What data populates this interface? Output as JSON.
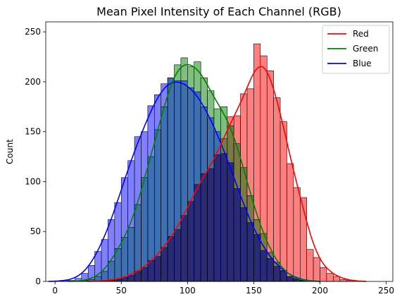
{
  "chart_data": {
    "type": "histogram",
    "title": "Mean Pixel Intensity of Each Channel (RGB)",
    "xlabel": "",
    "ylabel": "Count",
    "xlim": [
      -7,
      255
    ],
    "ylim": [
      0,
      260
    ],
    "xticks": [
      0,
      50,
      100,
      150,
      200,
      250
    ],
    "yticks": [
      0,
      50,
      100,
      150,
      200,
      250
    ],
    "bin_width": 5,
    "kde": true,
    "legend_position": "top-right",
    "grid": false,
    "series": [
      {
        "name": "Blue",
        "color": "#0000ff",
        "bin_start": 5,
        "counts": [
          1,
          1,
          3,
          8,
          16,
          30,
          42,
          62,
          79,
          104,
          121,
          145,
          150,
          176,
          187,
          198,
          204,
          201,
          201,
          194,
          190,
          175,
          164,
          150,
          128,
          119,
          93,
          74,
          59,
          47,
          31,
          23,
          15,
          11,
          5,
          3,
          1
        ]
      },
      {
        "name": "Green",
        "color": "#008000",
        "bin_start": 20,
        "counts": [
          1,
          2,
          5,
          10,
          20,
          33,
          44,
          54,
          77,
          104,
          125,
          152,
          175,
          204,
          217,
          224,
          215,
          220,
          204,
          191,
          173,
          175,
          156,
          138,
          114,
          86,
          62,
          48,
          29,
          19,
          10,
          5,
          2,
          1
        ]
      },
      {
        "name": "Red",
        "color": "#ff0000",
        "bin_start": 35,
        "counts": [
          1,
          1,
          2,
          4,
          6,
          10,
          14,
          21,
          25,
          34,
          45,
          52,
          66,
          80,
          97,
          108,
          113,
          127,
          143,
          165,
          166,
          188,
          193,
          238,
          226,
          211,
          184,
          160,
          118,
          94,
          84,
          32,
          24,
          14,
          8,
          5,
          2,
          1
        ]
      }
    ],
    "overlay_colors": {
      "Blue": "#7f7fff",
      "Green": "#7fbf7f",
      "Red": "#ff7f7f",
      "Blue+Green": "#3d6fb5",
      "Blue+Red": "#3b3ca5",
      "Green+Red": "#7a7a45",
      "Blue+Green+Red": "#2a2a7a"
    },
    "legend_order": [
      "Red",
      "Green",
      "Blue"
    ]
  }
}
